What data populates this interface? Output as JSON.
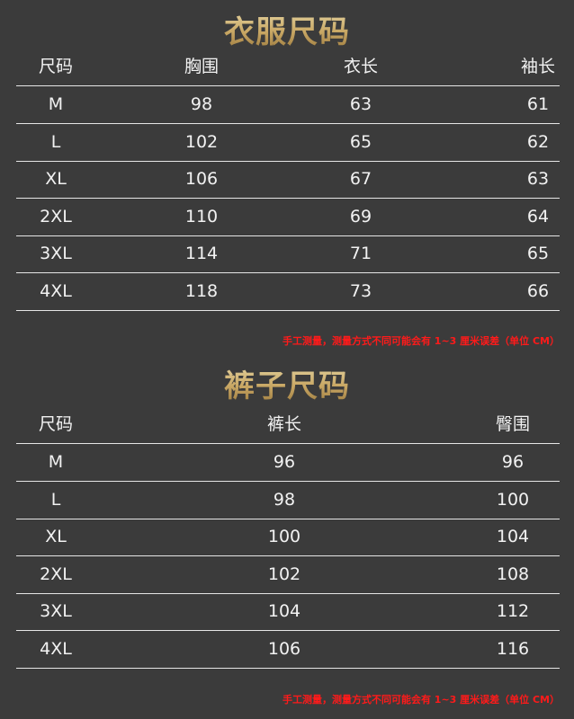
{
  "tops": {
    "title": "衣服尺码",
    "headers": [
      "尺码",
      "胸围",
      "衣长",
      "袖长"
    ],
    "rows": [
      [
        "M",
        "98",
        "63",
        "61"
      ],
      [
        "L",
        "102",
        "65",
        "62"
      ],
      [
        "XL",
        "106",
        "67",
        "63"
      ],
      [
        "2XL",
        "110",
        "69",
        "64"
      ],
      [
        "3XL",
        "114",
        "71",
        "65"
      ],
      [
        "4XL",
        "118",
        "73",
        "66"
      ]
    ],
    "note": "手工测量，测量方式不同可能会有 1~3 厘米误差（单位 CM）"
  },
  "pants": {
    "title": "裤子尺码",
    "headers": [
      "尺码",
      "裤长",
      "臀围"
    ],
    "rows": [
      [
        "M",
        "96",
        "96"
      ],
      [
        "L",
        "98",
        "100"
      ],
      [
        "XL",
        "100",
        "104"
      ],
      [
        "2XL",
        "102",
        "108"
      ],
      [
        "3XL",
        "104",
        "112"
      ],
      [
        "4XL",
        "106",
        "116"
      ]
    ],
    "note": "手工测量，测量方式不同可能会有 1~3 厘米误差（单位 CM）"
  },
  "colors": {
    "background": "#3b3b3b",
    "title_gold": "#c9a865",
    "note_red": "#ff1a1a",
    "text": "#f2f2f2"
  }
}
